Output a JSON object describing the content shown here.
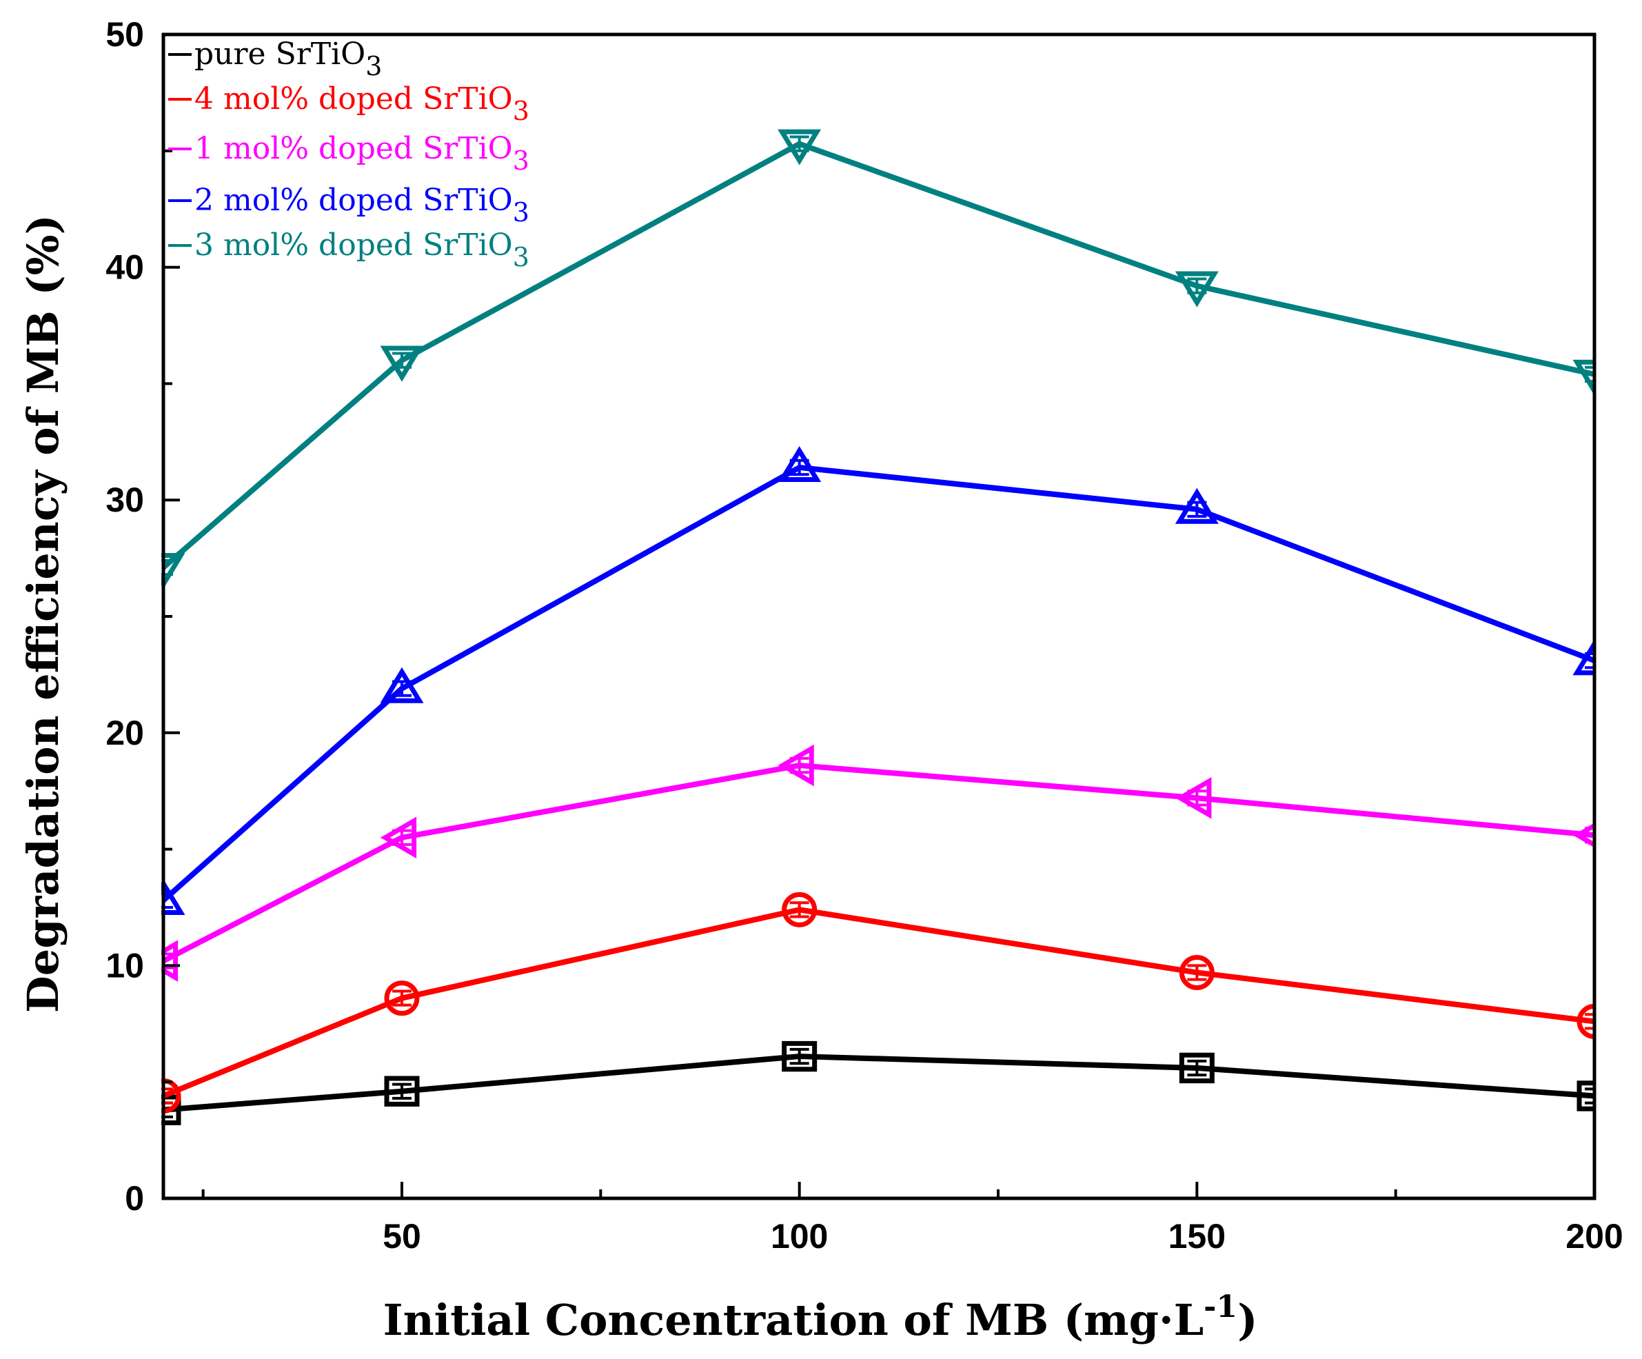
{
  "chart_data": {
    "type": "line",
    "xlabel": "Initial Concentration of MB (mg·L",
    "xlabel_sup": "-1",
    "xlabel_close": ")",
    "ylabel": "Degradation efficiency of MB (%)",
    "xlim": [
      20,
      200
    ],
    "ylim": [
      0,
      50
    ],
    "xticks": [
      50,
      100,
      150,
      200
    ],
    "yticks": [
      0,
      10,
      20,
      30,
      40,
      50
    ],
    "grid": false,
    "legend_position": "top-left",
    "x": [
      20,
      50,
      100,
      150,
      200
    ],
    "series": [
      {
        "name": "pure SrTiO",
        "sub": "3",
        "color": "#000000",
        "marker": "square",
        "values": [
          3.8,
          4.6,
          6.1,
          5.6,
          4.4
        ],
        "errors": [
          0.3,
          0.3,
          0.3,
          0.3,
          0.3
        ]
      },
      {
        "name": "4  mol% doped SrTiO",
        "sub": "3",
        "color": "#ff0000",
        "marker": "circle",
        "values": [
          4.4,
          8.6,
          12.4,
          9.7,
          7.6
        ],
        "errors": [
          0.3,
          0.3,
          0.3,
          0.3,
          0.3
        ]
      },
      {
        "name": "1 mol% doped SrTiO",
        "sub": "3",
        "color": "#ff00ff",
        "marker": "triangle-left",
        "values": [
          10.2,
          15.5,
          18.6,
          17.2,
          15.6
        ],
        "errors": [
          0.3,
          0.3,
          0.3,
          0.3,
          0.3
        ]
      },
      {
        "name": "2 mol% doped SrTiO",
        "sub": "3",
        "color": "#0000ff",
        "marker": "triangle-up",
        "values": [
          12.8,
          21.9,
          31.4,
          29.6,
          23.1
        ],
        "errors": [
          0.3,
          0.3,
          0.3,
          0.3,
          0.3
        ]
      },
      {
        "name": "3 mol% doped SrTiO",
        "sub": "3",
        "color": "#008080",
        "marker": "triangle-down",
        "values": [
          27.1,
          36.0,
          45.3,
          39.2,
          35.4
        ],
        "errors": [
          0.3,
          0.3,
          0.3,
          0.3,
          0.3
        ]
      }
    ]
  }
}
